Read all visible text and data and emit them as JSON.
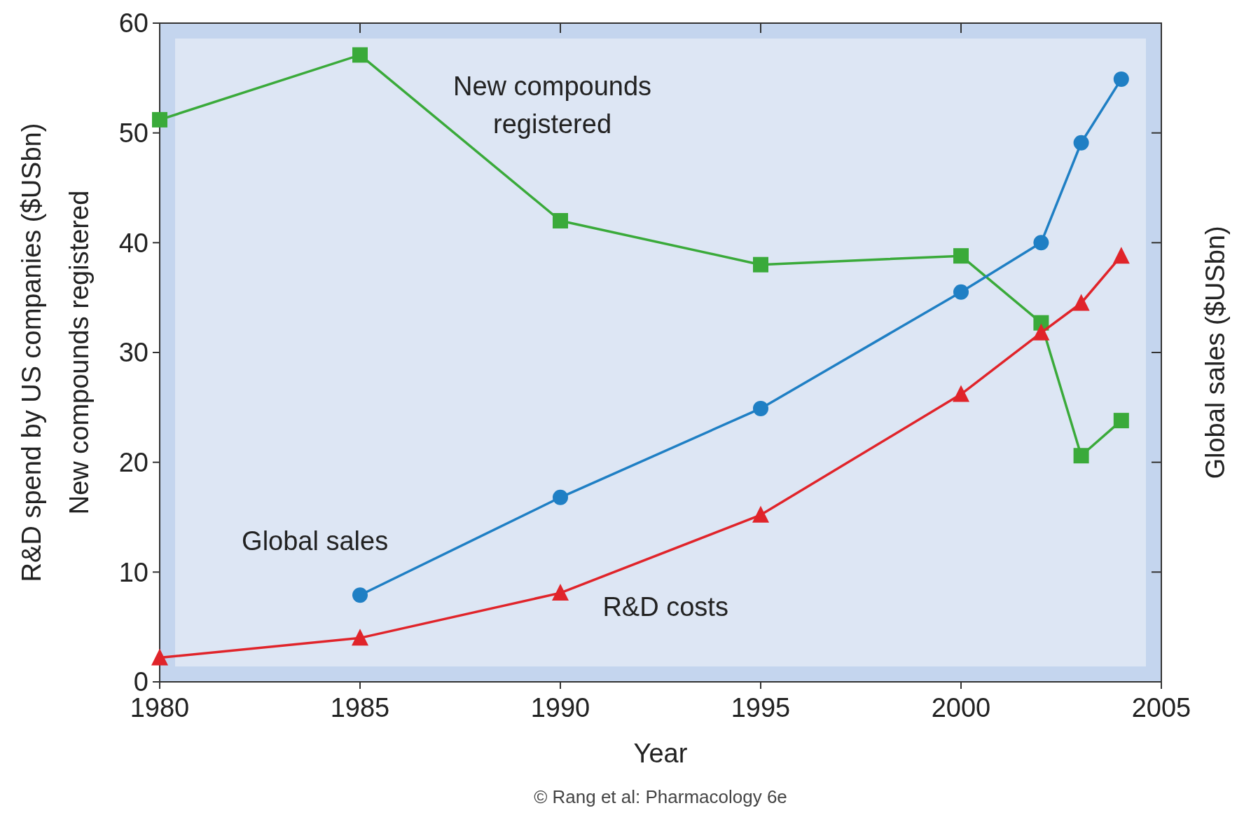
{
  "chart_data": {
    "type": "line",
    "xlabel": "Year",
    "ylabel": "R&D spend by US companies ($USbn)\nNew compounds registered",
    "y2label": "Global sales ($USbn)",
    "xlim": [
      1980,
      2005
    ],
    "xticks": [
      1980,
      1985,
      1990,
      1995,
      2000,
      2005
    ],
    "ylim": [
      0,
      60
    ],
    "yticks": [
      0,
      10,
      20,
      30,
      40,
      50,
      60
    ],
    "grid": false,
    "annotations": [
      "© Rang et al: Pharmacology 6e"
    ],
    "series": [
      {
        "name": "New compounds registered",
        "color": "#3aaa3a",
        "marker": "square",
        "x": [
          1980,
          1985,
          1990,
          1995,
          2000,
          2002,
          2003,
          2004
        ],
        "values": [
          51.2,
          57.1,
          42,
          38,
          38.8,
          32.7,
          20.6,
          23.8
        ]
      },
      {
        "name": "Global sales",
        "color": "#1f7fc4",
        "marker": "circle",
        "x": [
          1985,
          1990,
          1995,
          2000,
          2002,
          2003,
          2004
        ],
        "values": [
          7.9,
          16.8,
          24.9,
          35.5,
          40,
          49.1,
          54.9
        ]
      },
      {
        "name": "R&D costs",
        "color": "#e0242a",
        "marker": "triangle",
        "x": [
          1980,
          1985,
          1990,
          1995,
          2000,
          2002,
          2003,
          2004
        ],
        "values": [
          2.2,
          4,
          8.1,
          15.2,
          26.2,
          31.8,
          34.5,
          38.8
        ]
      }
    ]
  }
}
